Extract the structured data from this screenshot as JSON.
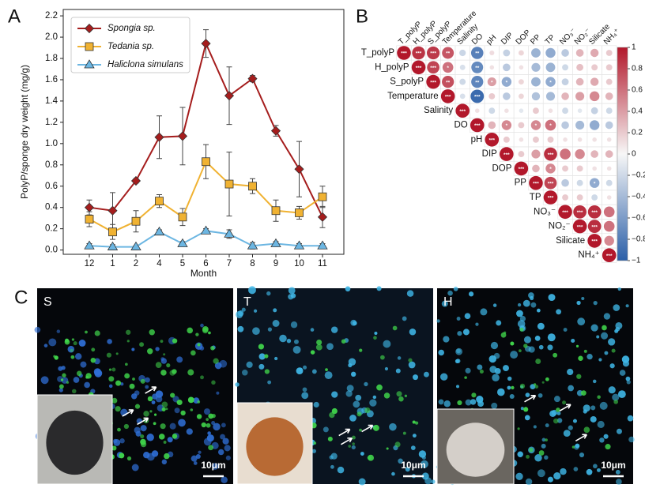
{
  "chart_data": [
    {
      "type": "line",
      "label": "A",
      "x_label": "Month",
      "y_label": "PolyP/sponge dry weight (mg/g)",
      "categories": [
        "12",
        "1",
        "2",
        "4",
        "5",
        "6",
        "7",
        "8",
        "9",
        "10",
        "11"
      ],
      "ylim": [
        -0.04,
        2.26
      ],
      "yticks": [
        {
          "value": 0,
          "label": "0.0"
        },
        0.2,
        0.4,
        0.6,
        0.8,
        {
          "value": 1,
          "label": "1.0"
        },
        1.2,
        1.4,
        1.6,
        1.8,
        {
          "value": 2,
          "label": "2.0"
        },
        2.2
      ],
      "legend": "upper left",
      "series": [
        {
          "name": "Spongia sp.",
          "color": "#a51d1d",
          "marker": "diamond",
          "values": [
            0.4,
            0.37,
            0.65,
            1.06,
            1.07,
            1.94,
            1.45,
            1.61,
            1.12,
            0.76,
            0.31
          ],
          "errors": [
            0.07,
            0.17,
            0.02,
            0.2,
            0.27,
            0.13,
            0.27,
            0.03,
            0.05,
            0.26,
            0.1
          ]
        },
        {
          "name": "Tedania sp.",
          "color": "#f0b232",
          "marker": "square",
          "values": [
            0.29,
            0.17,
            0.27,
            0.46,
            0.31,
            0.83,
            0.62,
            0.6,
            0.37,
            0.35,
            0.5
          ],
          "errors": [
            0.07,
            0.07,
            0.1,
            0.06,
            0.08,
            0.16,
            0.3,
            0.07,
            0.1,
            0.06,
            0.1
          ]
        },
        {
          "name": "Haliclona simulans",
          "color": "#6cb6e2",
          "marker": "triangle",
          "values": [
            0.04,
            0.03,
            0.03,
            0.17,
            0.06,
            0.18,
            0.15,
            0.04,
            0.06,
            0.04,
            0.04
          ],
          "errors": [
            0.02,
            0.02,
            0.01,
            0.02,
            0.02,
            0.02,
            0.04,
            0.03,
            0.02,
            0.02,
            0.02
          ]
        }
      ]
    },
    {
      "type": "correlation",
      "label": "B",
      "variables": [
        "T_polyP",
        "H_polyP",
        "S_polyP",
        "Temperature",
        "Salinity",
        "DO",
        "pH",
        "DIP",
        "DOP",
        "PP",
        "TP",
        "NO₃⁻",
        "NO₂⁻",
        "Silicate",
        "NH₄⁺"
      ],
      "colormap": [
        "#2b5fa8",
        "#f7f7f7",
        "#b2182b"
      ],
      "clim": [
        -1,
        1
      ],
      "cticks": [
        1,
        0.8,
        0.6,
        0.4,
        0.2,
        0,
        {
          "value": -0.2,
          "label": "−0.2"
        },
        {
          "value": -0.4,
          "label": "−0.4"
        },
        {
          "value": -0.6,
          "label": "−0.6"
        },
        {
          "value": -0.8,
          "label": "−0.8"
        },
        {
          "value": -1,
          "label": "−1"
        }
      ],
      "values": [
        [
          1,
          0.88,
          0.85,
          0.72,
          -0.22,
          -0.78,
          0.12,
          -0.25,
          0.15,
          -0.45,
          -0.5,
          -0.3,
          0.3,
          0.35,
          0.2
        ],
        [
          1,
          0.8,
          0.6,
          -0.15,
          -0.72,
          0.1,
          -0.3,
          0.1,
          -0.4,
          -0.45,
          -0.2,
          0.25,
          0.2,
          0.2
        ],
        [
          1,
          0.75,
          -0.2,
          -0.75,
          0.4,
          -0.5,
          0.15,
          -0.45,
          -0.5,
          -0.25,
          0.3,
          0.35,
          0.2
        ],
        [
          1,
          -0.15,
          -0.92,
          0.2,
          -0.3,
          0.15,
          -0.35,
          -0.4,
          0.3,
          0.4,
          0.5,
          0.3
        ],
        [
          1,
          0.1,
          -0.2,
          0.1,
          -0.1,
          0.2,
          0.1,
          -0.2,
          -0.1,
          -0.25,
          -0.2
        ],
        [
          1,
          0.3,
          0.5,
          0.2,
          0.5,
          0.6,
          -0.3,
          -0.4,
          -0.5,
          -0.3
        ],
        [
          1,
          0.2,
          0.1,
          0.2,
          0.2,
          0.1,
          0.1,
          0.1,
          0.1
        ],
        [
          1,
          0.2,
          0.4,
          0.9,
          0.6,
          0.5,
          0.3,
          0.3
        ],
        [
          1,
          0.3,
          0.5,
          0.2,
          0.2,
          0.1,
          0.1
        ],
        [
          1,
          0.8,
          -0.3,
          -0.2,
          -0.5,
          -0.2
        ],
        [
          1,
          0.2,
          0.2,
          -0.2,
          0.1
        ],
        [
          1,
          0.9,
          0.9,
          0.6
        ],
        [
          1,
          0.9,
          0.6
        ],
        [
          1,
          0.5
        ],
        [
          1
        ]
      ],
      "stars": [
        [
          "***",
          "***",
          "***",
          "**",
          null,
          "**",
          null,
          null,
          null,
          null,
          null,
          null,
          null,
          null,
          null
        ],
        [
          "***",
          "***",
          "*",
          null,
          "**",
          null,
          null,
          null,
          null,
          null,
          null,
          null,
          null,
          null
        ],
        [
          "***",
          "**",
          null,
          "**",
          "*",
          "*",
          null,
          null,
          "*",
          null,
          null,
          null,
          null
        ],
        [
          "***",
          null,
          "***",
          null,
          null,
          null,
          null,
          null,
          null,
          null,
          null,
          null
        ],
        [
          "***",
          null,
          null,
          null,
          null,
          null,
          null,
          null,
          null,
          null,
          null
        ],
        [
          "***",
          null,
          "*",
          null,
          "*",
          "*",
          null,
          null,
          null,
          null
        ],
        [
          "***",
          null,
          null,
          null,
          null,
          null,
          null,
          null,
          null
        ],
        [
          "***",
          null,
          null,
          "***",
          null,
          null,
          null,
          null
        ],
        [
          "***",
          null,
          "*",
          null,
          null,
          null,
          null
        ],
        [
          "***",
          "***",
          null,
          null,
          "*",
          null
        ],
        [
          "***",
          null,
          null,
          null,
          null
        ],
        [
          "***",
          "***",
          "***",
          null
        ],
        [
          "***",
          "***",
          null
        ],
        [
          "***",
          null
        ],
        [
          "***"
        ]
      ]
    }
  ],
  "images": {
    "label": "C",
    "panels": [
      {
        "label": "S",
        "scale_bar": "10μm"
      },
      {
        "label": "T",
        "scale_bar": "10μm"
      },
      {
        "label": "H",
        "scale_bar": "10μm"
      }
    ]
  }
}
